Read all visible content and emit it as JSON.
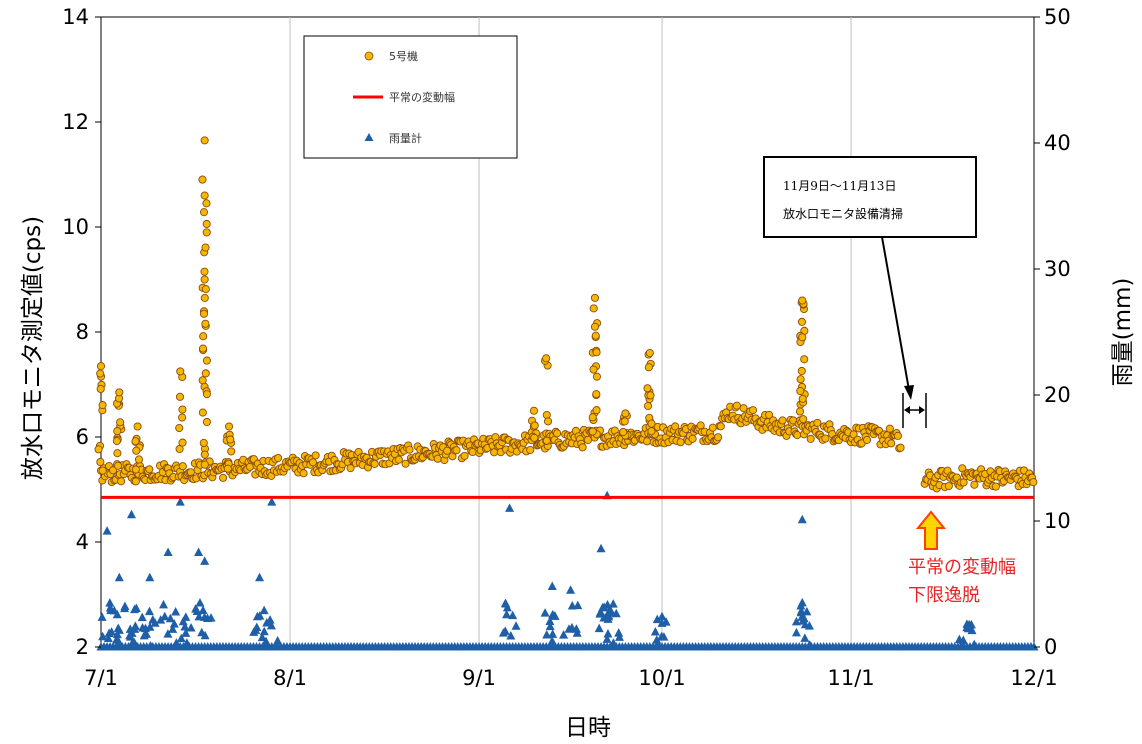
{
  "chart_data": {
    "type": "scatter",
    "xlabel": "日時",
    "ylabel_left": "放水口モニタ測定値(cps)",
    "ylabel_right": "雨量(mm)",
    "x_ticks": [
      "7/1",
      "8/1",
      "9/1",
      "10/1",
      "11/1",
      "12/1"
    ],
    "x_range": [
      "7/1",
      "12/1"
    ],
    "y_left_ticks": [
      "2",
      "4",
      "6",
      "8",
      "10",
      "12",
      "14"
    ],
    "y_left_range": [
      2,
      14
    ],
    "y_right_ticks": [
      "0",
      "10",
      "20",
      "30",
      "40",
      "50"
    ],
    "y_right_range": [
      0,
      50
    ],
    "grid": "vertical",
    "legend": [
      {
        "name": "5号機",
        "marker": "circle",
        "color": "#f5b800"
      },
      {
        "name": "平常の変動幅",
        "marker": "line",
        "color": "#ff0000"
      },
      {
        "name": "雨量計",
        "marker": "triangle",
        "color": "#1f5fa8"
      }
    ],
    "normal_range_lower": 4.85,
    "series": [
      {
        "name": "5号機",
        "axis": "left",
        "baseline_trend": [
          {
            "x": "7/1",
            "y": 5.3
          },
          {
            "x": "7/15",
            "y": 5.35
          },
          {
            "x": "8/1",
            "y": 5.45
          },
          {
            "x": "8/15",
            "y": 5.6
          },
          {
            "x": "9/1",
            "y": 5.8
          },
          {
            "x": "9/15",
            "y": 5.95
          },
          {
            "x": "10/1",
            "y": 6.05
          },
          {
            "x": "10/10",
            "y": 6.1
          },
          {
            "x": "10/12",
            "y": 6.5
          },
          {
            "x": "10/20",
            "y": 6.2
          },
          {
            "x": "11/1",
            "y": 6.05
          },
          {
            "x": "11/8",
            "y": 6.0
          },
          {
            "x": "11/13",
            "y": 5.15
          },
          {
            "x": "11/20",
            "y": 5.25
          },
          {
            "x": "12/1",
            "y": 5.2
          }
        ],
        "peaks": [
          {
            "x": "7/1",
            "y": 7.35
          },
          {
            "x": "7/4",
            "y": 6.85
          },
          {
            "x": "7/7",
            "y": 6.2
          },
          {
            "x": "7/14",
            "y": 7.25
          },
          {
            "x": "7/18",
            "y": 11.65
          },
          {
            "x": "7/18",
            "y": 10.6
          },
          {
            "x": "7/18",
            "y": 9.0
          },
          {
            "x": "7/22",
            "y": 6.2
          },
          {
            "x": "9/10",
            "y": 6.5
          },
          {
            "x": "9/12",
            "y": 7.5
          },
          {
            "x": "9/20",
            "y": 8.65
          },
          {
            "x": "9/20",
            "y": 8.1
          },
          {
            "x": "9/25",
            "y": 6.45
          },
          {
            "x": "9/29",
            "y": 7.6
          },
          {
            "x": "10/24",
            "y": 8.6
          },
          {
            "x": "10/24",
            "y": 7.9
          }
        ]
      },
      {
        "name": "雨量計",
        "axis": "right",
        "peaks": [
          {
            "x": "7/2",
            "y": 9.2
          },
          {
            "x": "7/4",
            "y": 5.5
          },
          {
            "x": "7/6",
            "y": 10.5
          },
          {
            "x": "7/9",
            "y": 5.5
          },
          {
            "x": "7/12",
            "y": 7.5
          },
          {
            "x": "7/14",
            "y": 11.5
          },
          {
            "x": "7/17",
            "y": 7.5
          },
          {
            "x": "7/18",
            "y": 6.8
          },
          {
            "x": "7/27",
            "y": 5.5
          },
          {
            "x": "7/29",
            "y": 11.5
          },
          {
            "x": "9/6",
            "y": 11
          },
          {
            "x": "9/13",
            "y": 4.8
          },
          {
            "x": "9/16",
            "y": 4.5
          },
          {
            "x": "9/21",
            "y": 7.8
          },
          {
            "x": "9/22",
            "y": 12
          },
          {
            "x": "9/23",
            "y": 3.4
          },
          {
            "x": "10/1",
            "y": 2.4
          },
          {
            "x": "10/24",
            "y": 10.1
          },
          {
            "x": "10/24",
            "y": 3.5
          },
          {
            "x": "11/20",
            "y": 1.8
          }
        ]
      }
    ],
    "annotations": {
      "maintenance_period": [
        "11月9日～11月13日",
        "放水口モニタ設備清掃"
      ],
      "deviation": [
        "平常の変動幅",
        "下限逸脱"
      ]
    },
    "colors": {
      "unit5_fill": "#f5b800",
      "unit5_edge": "#8b4a10",
      "normal_line": "#ff0000",
      "rain": "#1f5fa8",
      "deviation_arrow_fill": "#ffd400",
      "deviation_arrow_edge": "#ff4000",
      "deviation_text": "#e8262a"
    }
  }
}
